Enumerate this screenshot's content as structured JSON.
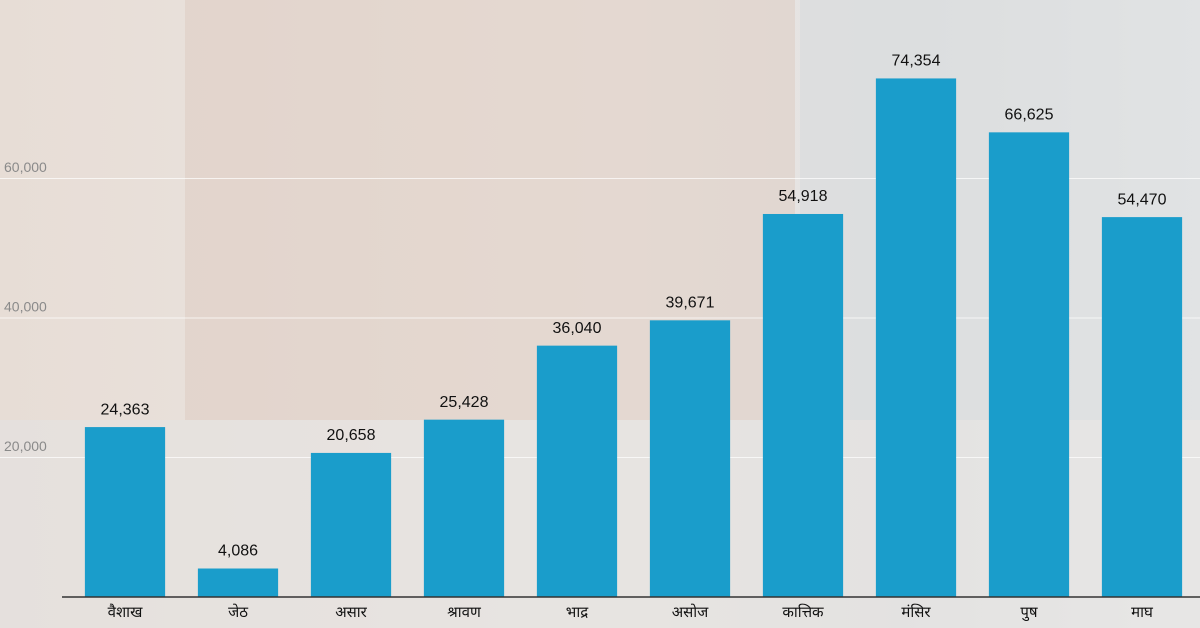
{
  "chart_data": {
    "type": "bar",
    "categories": [
      "वैशाख",
      "जेठ",
      "असार",
      "श्रावण",
      "भाद्र",
      "असोज",
      "कात्तिक",
      "मंसिर",
      "पुष",
      "माघ"
    ],
    "values": [
      24363,
      4086,
      20658,
      25428,
      36040,
      39671,
      54918,
      74354,
      66625,
      54470
    ],
    "value_labels": [
      "24,363",
      "4,086",
      "20,658",
      "25,428",
      "36,040",
      "39,671",
      "54,918",
      "74,354",
      "66,625",
      "54,470"
    ],
    "color": "#1a9dcb",
    "ylim": [
      0,
      85600
    ],
    "yticks": [
      {
        "value": 20000,
        "label": "20,000"
      },
      {
        "value": 40000,
        "label": "40,000"
      },
      {
        "value": 60000,
        "label": "60,000"
      }
    ],
    "grid": true
  }
}
